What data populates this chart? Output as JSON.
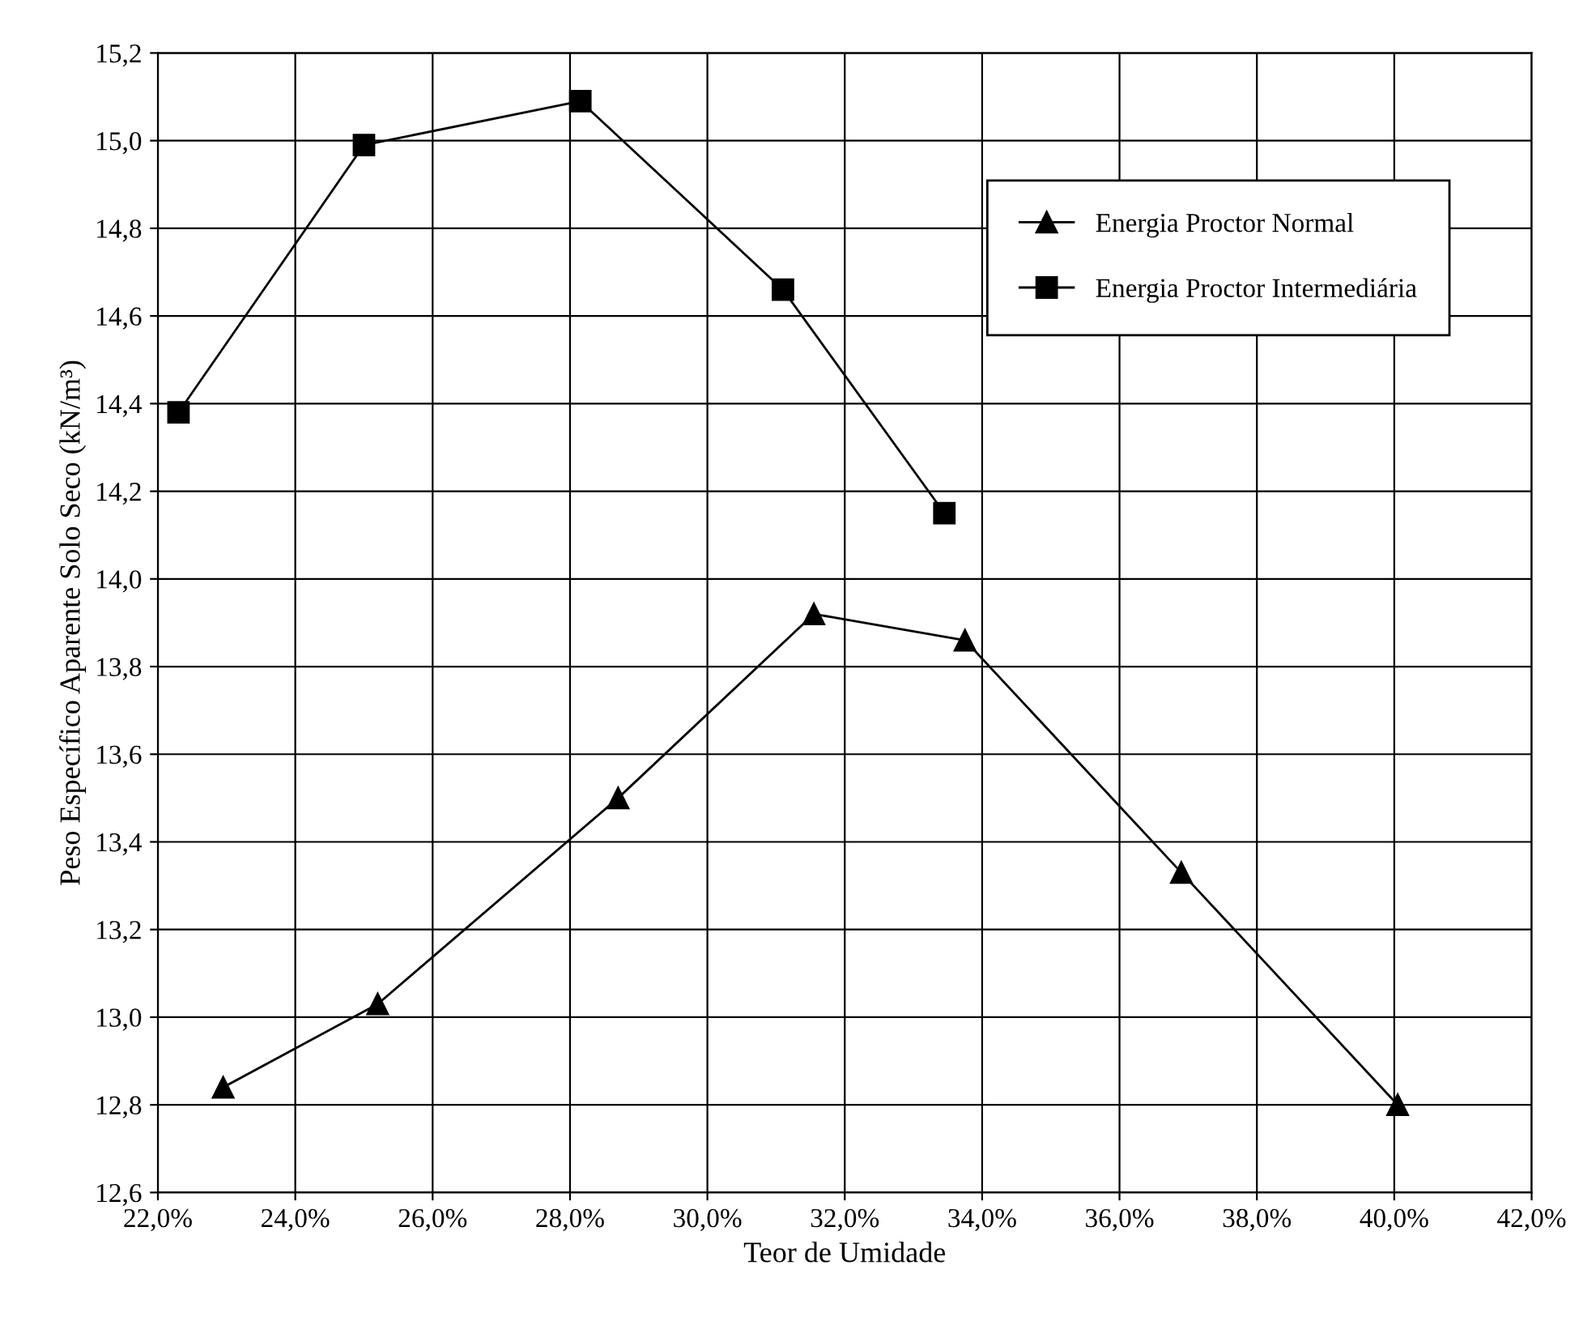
{
  "chart_data": {
    "type": "line",
    "xlabel": "Teor de Umidade",
    "ylabel": "Peso Específico Aparente Solo Seco (kN/m³)",
    "xlim": [
      22,
      42
    ],
    "ylim": [
      12.6,
      15.2
    ],
    "xticks": [
      {
        "value": 22,
        "label": "22,0%"
      },
      {
        "value": 24,
        "label": "24,0%"
      },
      {
        "value": 26,
        "label": "26,0%"
      },
      {
        "value": 28,
        "label": "28,0%"
      },
      {
        "value": 30,
        "label": "30,0%"
      },
      {
        "value": 32,
        "label": "32,0%"
      },
      {
        "value": 34,
        "label": "34,0%"
      },
      {
        "value": 36,
        "label": "36,0%"
      },
      {
        "value": 38,
        "label": "38,0%"
      },
      {
        "value": 40,
        "label": "40,0%"
      },
      {
        "value": 42,
        "label": "42,0%"
      }
    ],
    "yticks": [
      {
        "value": 12.6,
        "label": "12,6"
      },
      {
        "value": 12.8,
        "label": "12,8"
      },
      {
        "value": 13.0,
        "label": "13,0"
      },
      {
        "value": 13.2,
        "label": "13,2"
      },
      {
        "value": 13.4,
        "label": "13,4"
      },
      {
        "value": 13.6,
        "label": "13,6"
      },
      {
        "value": 13.8,
        "label": "13,8"
      },
      {
        "value": 14.0,
        "label": "14,0"
      },
      {
        "value": 14.2,
        "label": "14,2"
      },
      {
        "value": 14.4,
        "label": "14,4"
      },
      {
        "value": 14.6,
        "label": "14,6"
      },
      {
        "value": 14.8,
        "label": "14,8"
      },
      {
        "value": 15.0,
        "label": "15,0"
      },
      {
        "value": 15.2,
        "label": "15,2"
      }
    ],
    "grid": true,
    "legend": "top right",
    "series": [
      {
        "name": "Energia Proctor Normal",
        "color": "#000000",
        "marker": "triangle",
        "x": [
          22.95,
          25.2,
          28.7,
          31.55,
          33.75,
          36.9,
          40.05
        ],
        "values": [
          12.84,
          13.03,
          13.5,
          13.92,
          13.86,
          13.33,
          12.8
        ]
      },
      {
        "name": "Energia Proctor Intermediária",
        "color": "#000000",
        "marker": "square",
        "x": [
          22.3,
          25.0,
          28.15,
          31.1,
          33.45
        ],
        "values": [
          14.38,
          14.99,
          15.09,
          14.66,
          14.15
        ]
      }
    ]
  }
}
